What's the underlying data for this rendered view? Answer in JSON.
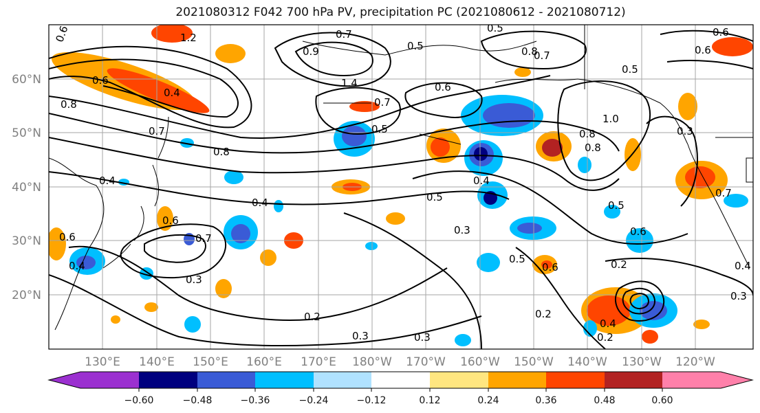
{
  "title": "2021080312 F042 700 hPa PV, precipitation PC (2021080612 - 2021080712)",
  "lat_labels": [
    "60°N",
    "50°N",
    "40°N",
    "30°N",
    "20°N"
  ],
  "lon_labels": [
    "130°E",
    "140°E",
    "150°E",
    "160°E",
    "170°E",
    "180°W",
    "170°W",
    "160°W",
    "150°W",
    "140°W",
    "130°W",
    "120°W"
  ],
  "colorbar": {
    "colors": [
      "#9b30d0",
      "#00007f",
      "#3a5bd6",
      "#00bfff",
      "#b0e2ff",
      "#ffffff",
      "#ffe680",
      "#ffa500",
      "#ff4500",
      "#b22222",
      "#ff80aa"
    ],
    "ticks": [
      "−0.60",
      "−0.48",
      "−0.36",
      "−0.24",
      "−0.12",
      "0.12",
      "0.24",
      "0.36",
      "0.48",
      "0.60"
    ]
  },
  "contour_labels": [
    "0.6",
    "1.2",
    "0.7",
    "0.5",
    "0.6",
    "0.8",
    "0.7",
    "0.5",
    "0.6",
    "0.6",
    "0.4",
    "0.8",
    "0.9",
    "1.4",
    "0.7",
    "0.5",
    "0.6",
    "0.8",
    "0.8",
    "1.0",
    "0.3",
    "0.7",
    "0.8",
    "0.4",
    "0.5",
    "0.5",
    "0.4",
    "0.4",
    "0.6",
    "0.4",
    "0.6",
    "0.7",
    "0.3",
    "0.3",
    "0.5",
    "0.6",
    "0.7",
    "0.5",
    "0.6",
    "0.2",
    "0.4",
    "0.3",
    "0.2",
    "0.3",
    "0.2",
    "0.2",
    "0.4",
    "0.3"
  ]
}
